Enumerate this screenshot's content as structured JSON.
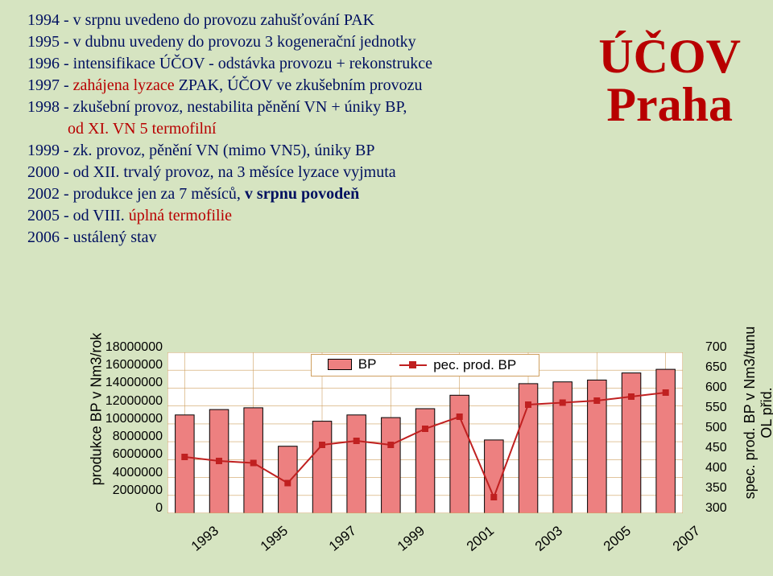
{
  "background_color": "#d6e4c1",
  "text_color": "#001060",
  "accent_color": "#b80000",
  "title": {
    "line1": "ÚČOV",
    "line2": "Praha"
  },
  "timeline": [
    {
      "year": "1994",
      "text": " - v srpnu uvedeno do provozu zahušťování PAK"
    },
    {
      "year": "1995",
      "text": " - v dubnu uvedeny do provozu 3 kogenerační jednotky"
    },
    {
      "year": "1996",
      "text": " - intensifikace ÚČOV - odstávka provozu + rekonstrukce"
    },
    {
      "year": "1997",
      "pre": " - ",
      "red": "zahájena lyzace",
      "post": " ZPAK, ÚČOV ve zkušebním provozu"
    },
    {
      "year": "1998",
      "pre": " - zkušební provoz, nestabilita pěnění VN + úniky BP,\n          ",
      "red": "od XI. VN 5 termofilní"
    },
    {
      "year": "1999",
      "text": " - zk. provoz, pěnění VN (mimo VN5), úniky BP"
    },
    {
      "year": "2000",
      "text": " - od XII. trvalý provoz, na 3 měsíce lyzace vyjmuta"
    },
    {
      "year": "2002",
      "text": " - produkce jen za 7 měsíců, ",
      "bold_tail": "v srpnu povodeň"
    },
    {
      "year": "2005",
      "pre": " - od VIII. ",
      "red": "úplná termofilie"
    },
    {
      "year": "2006",
      "text": " - ustálený stav"
    }
  ],
  "chart": {
    "type": "bar+line",
    "plot_bg": "#ffffff",
    "grid_color": "#cfa060",
    "border_color": "#cfa060",
    "font_family": "Arial, sans-serif",
    "ylabel_left": "produkce BP v Nm3/rok",
    "ylabel_right": "spec. prod. BP v Nm3/tunu\nOL přid.",
    "y_left": {
      "min": 0,
      "max": 18000000,
      "step": 2000000
    },
    "y_right": {
      "min": 300,
      "max": 700,
      "step": 50
    },
    "xticks_shown": [
      "1993",
      "1995",
      "1997",
      "1999",
      "2001",
      "2003",
      "2005",
      "2007"
    ],
    "categories": [
      "1993",
      "1994",
      "1995",
      "1996",
      "1997",
      "1998",
      "1999",
      "2000",
      "2001",
      "2002",
      "2003",
      "2004",
      "2005",
      "2006",
      "2007"
    ],
    "legend": {
      "bar_label": "BP",
      "bar_color": "#ed8080",
      "bar_border": "#000000",
      "line_label": "pec. prod. BP",
      "line_color": "#c02020",
      "marker": "square"
    },
    "series": {
      "BP": {
        "type": "bar",
        "color": "#ed8080",
        "border": "#000000",
        "bar_width": 0.55,
        "values": [
          11000000,
          11600000,
          11800000,
          7500000,
          10300000,
          11000000,
          10700000,
          11700000,
          13200000,
          8200000,
          14500000,
          14700000,
          14900000,
          15700000,
          16100000
        ]
      },
      "spec_prod_BP": {
        "type": "line",
        "color": "#c02020",
        "marker_fill": "#c02020",
        "values": [
          440,
          430,
          425,
          375,
          470,
          480,
          470,
          510,
          540,
          340,
          570,
          575,
          580,
          590,
          600
        ]
      }
    }
  }
}
